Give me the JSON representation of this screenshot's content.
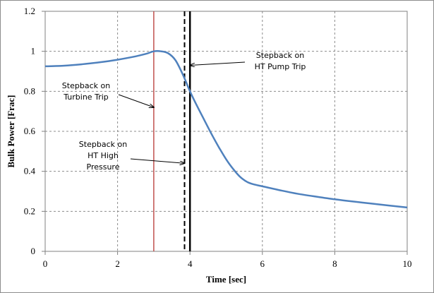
{
  "chart_data": {
    "type": "line",
    "title": "",
    "xlabel": "Time [sec]",
    "ylabel": "Bulk Power [Frac]",
    "xlim": [
      0,
      10
    ],
    "ylim": [
      0,
      1.2
    ],
    "x_ticks": [
      "0",
      "2",
      "4",
      "6",
      "8",
      "10"
    ],
    "y_ticks": [
      "0",
      "0.2",
      "0.4",
      "0.6",
      "0.8",
      "1",
      "1.2"
    ],
    "grid": "dashed",
    "legend": "none",
    "series": [
      {
        "color": "#4f81bd",
        "points": [
          [
            0.0,
            0.925
          ],
          [
            0.5,
            0.928
          ],
          [
            1.0,
            0.935
          ],
          [
            1.5,
            0.945
          ],
          [
            2.0,
            0.958
          ],
          [
            2.5,
            0.975
          ],
          [
            2.8,
            0.988
          ],
          [
            3.0,
            1.0
          ],
          [
            3.2,
            1.0
          ],
          [
            3.4,
            0.99
          ],
          [
            3.6,
            0.955
          ],
          [
            3.8,
            0.885
          ],
          [
            4.0,
            0.8
          ],
          [
            4.2,
            0.725
          ],
          [
            4.4,
            0.655
          ],
          [
            4.6,
            0.585
          ],
          [
            4.8,
            0.52
          ],
          [
            5.0,
            0.46
          ],
          [
            5.2,
            0.41
          ],
          [
            5.4,
            0.37
          ],
          [
            5.6,
            0.345
          ],
          [
            5.8,
            0.333
          ],
          [
            6.0,
            0.325
          ],
          [
            6.5,
            0.305
          ],
          [
            7.0,
            0.287
          ],
          [
            7.5,
            0.273
          ],
          [
            8.0,
            0.26
          ],
          [
            8.5,
            0.249
          ],
          [
            9.0,
            0.239
          ],
          [
            9.5,
            0.229
          ],
          [
            10.0,
            0.219
          ]
        ]
      }
    ],
    "vertical_lines": [
      {
        "x": 3.0,
        "color": "#c0504d",
        "style": "solid"
      },
      {
        "x": 3.85,
        "color": "#000000",
        "style": "dashed"
      },
      {
        "x": 4.0,
        "color": "#000000",
        "style": "solid"
      }
    ],
    "annotations": [
      {
        "lines": [
          "Stepback on",
          "HT Pump Trip"
        ],
        "target": [
          4.0,
          0.93
        ]
      },
      {
        "lines": [
          "Stepback on",
          "Turbine Trip"
        ],
        "target": [
          3.0,
          0.72
        ]
      },
      {
        "lines": [
          "Stepback on",
          "HT High",
          "Pressure"
        ],
        "target": [
          3.85,
          0.44
        ]
      }
    ]
  }
}
